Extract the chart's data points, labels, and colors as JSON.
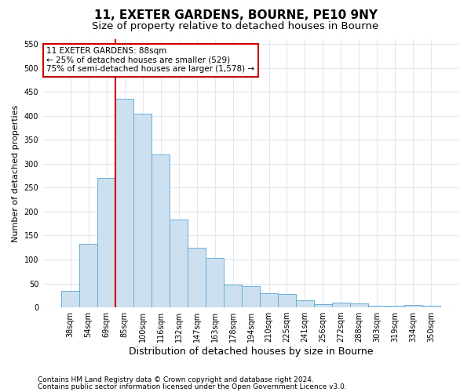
{
  "title1": "11, EXETER GARDENS, BOURNE, PE10 9NY",
  "title2": "Size of property relative to detached houses in Bourne",
  "xlabel": "Distribution of detached houses by size in Bourne",
  "ylabel": "Number of detached properties",
  "categories": [
    "38sqm",
    "54sqm",
    "69sqm",
    "85sqm",
    "100sqm",
    "116sqm",
    "132sqm",
    "147sqm",
    "163sqm",
    "178sqm",
    "194sqm",
    "210sqm",
    "225sqm",
    "241sqm",
    "256sqm",
    "272sqm",
    "288sqm",
    "303sqm",
    "319sqm",
    "334sqm",
    "350sqm"
  ],
  "values": [
    35,
    133,
    270,
    435,
    405,
    320,
    183,
    125,
    103,
    47,
    45,
    29,
    28,
    15,
    7,
    10,
    9,
    4,
    4,
    5,
    4
  ],
  "bar_color": "#cce0f0",
  "bar_edge_color": "#6aaed6",
  "vline_x_index": 2.5,
  "vline_color": "#cc0000",
  "annotation_text": "11 EXETER GARDENS: 88sqm\n← 25% of detached houses are smaller (529)\n75% of semi-detached houses are larger (1,578) →",
  "annotation_box_facecolor": "#ffffff",
  "annotation_box_edge_color": "#cc0000",
  "ylim": [
    0,
    560
  ],
  "yticks": [
    0,
    50,
    100,
    150,
    200,
    250,
    300,
    350,
    400,
    450,
    500,
    550
  ],
  "footer1": "Contains HM Land Registry data © Crown copyright and database right 2024.",
  "footer2": "Contains public sector information licensed under the Open Government Licence v3.0.",
  "bg_color": "#ffffff",
  "plot_bg_color": "#ffffff",
  "grid_color": "#e0e8f0",
  "title1_fontsize": 11,
  "title2_fontsize": 9.5,
  "xlabel_fontsize": 9,
  "ylabel_fontsize": 8,
  "tick_fontsize": 7,
  "footer_fontsize": 6.5,
  "annotation_fontsize": 7.5
}
